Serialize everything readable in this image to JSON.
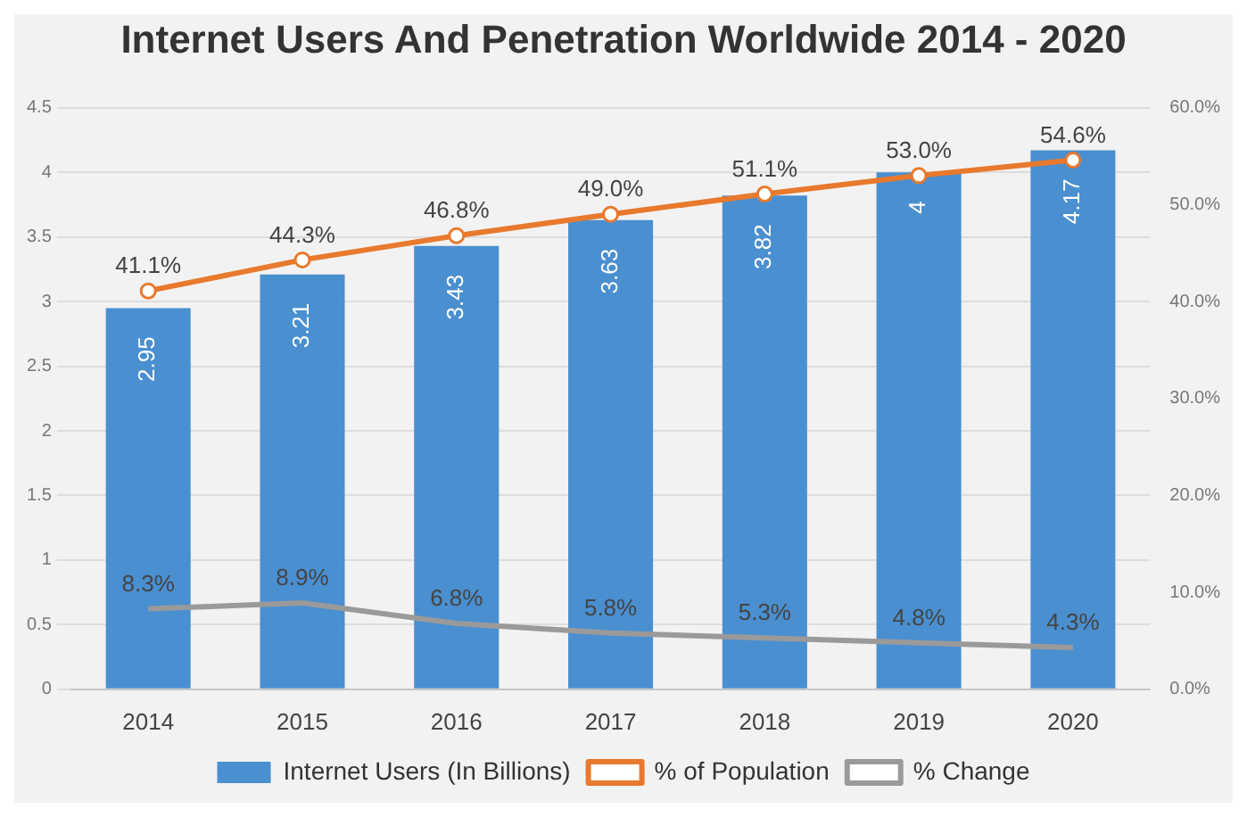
{
  "chart_data": {
    "type": "bar",
    "title": "Internet Users And Penetration Worldwide 2014 - 2020",
    "categories": [
      "2014",
      "2015",
      "2016",
      "2017",
      "2018",
      "2019",
      "2020"
    ],
    "series": [
      {
        "name": "Internet Users (In Billions)",
        "color": "#4a8fd0",
        "values": [
          2.95,
          3.21,
          3.43,
          3.63,
          3.82,
          4,
          4.17
        ],
        "value_labels": [
          "2.95",
          "3.21",
          "3.43",
          "3.63",
          "3.82",
          "4",
          "4.17"
        ]
      },
      {
        "name": "% of Population",
        "type": "line",
        "axis": "y2",
        "color": "#e8792d",
        "marker": "circle",
        "values": [
          41.1,
          44.3,
          46.8,
          49.0,
          51.1,
          53.0,
          54.6
        ],
        "value_labels": [
          "41.1%",
          "44.3%",
          "46.8%",
          "49.0%",
          "51.1%",
          "53.0%",
          "54.6%"
        ]
      },
      {
        "name": "% Change",
        "type": "line",
        "axis": "y2",
        "color": "#9a9a9a",
        "marker": "none",
        "values": [
          8.3,
          8.9,
          6.8,
          5.8,
          5.3,
          4.8,
          4.3
        ],
        "value_labels": [
          "8.3%",
          "8.9%",
          "6.8%",
          "5.8%",
          "5.3%",
          "4.8%",
          "4.3%"
        ]
      }
    ],
    "ylim": [
      0,
      4.5
    ],
    "yticks": [
      0,
      0.5,
      1,
      1.5,
      2,
      2.5,
      3,
      3.5,
      4,
      4.5
    ],
    "y2lim": [
      0,
      60
    ],
    "y2ticks": [
      {
        "value": 0,
        "label": "0.0%"
      },
      {
        "value": 10,
        "label": "10.0%"
      },
      {
        "value": 20,
        "label": "20.0%"
      },
      {
        "value": 30,
        "label": "30.0%"
      },
      {
        "value": 40,
        "label": "40.0%"
      },
      {
        "value": 50,
        "label": "50.0%"
      },
      {
        "value": 60,
        "label": "60.0%"
      }
    ],
    "grid": "y",
    "legend": "bottom"
  }
}
